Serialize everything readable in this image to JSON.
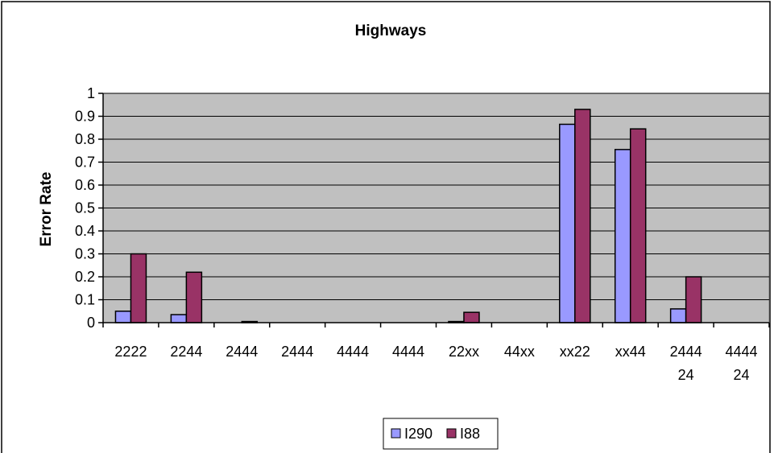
{
  "chart_data": {
    "type": "bar",
    "title": "Highways",
    "xlabel": "",
    "ylabel": "Error Rate",
    "ylim": [
      0,
      1
    ],
    "yticks": [
      "0",
      "0.1",
      "0.2",
      "0.3",
      "0.4",
      "0.5",
      "0.6",
      "0.7",
      "0.8",
      "0.9",
      "1"
    ],
    "categories": [
      [
        "2222"
      ],
      [
        "2244"
      ],
      [
        "2444"
      ],
      [
        "2444"
      ],
      [
        "4444"
      ],
      [
        "4444"
      ],
      [
        "22xx"
      ],
      [
        "44xx"
      ],
      [
        "xx22"
      ],
      [
        "xx44"
      ],
      [
        "2444",
        "24"
      ],
      [
        "4444",
        "24"
      ]
    ],
    "series": [
      {
        "name": "I290",
        "color": "#9999ff",
        "values": [
          0.05,
          0.035,
          0,
          0,
          0,
          0,
          0.005,
          0,
          0.865,
          0.755,
          0.06,
          0
        ]
      },
      {
        "name": "I88",
        "color": "#993366",
        "values": [
          0.3,
          0.22,
          0.005,
          0,
          0,
          0,
          0.045,
          0,
          0.93,
          0.845,
          0.2,
          0
        ]
      }
    ],
    "grid": true,
    "legend_position": "bottom",
    "plot_background": "#c0c0c0"
  }
}
